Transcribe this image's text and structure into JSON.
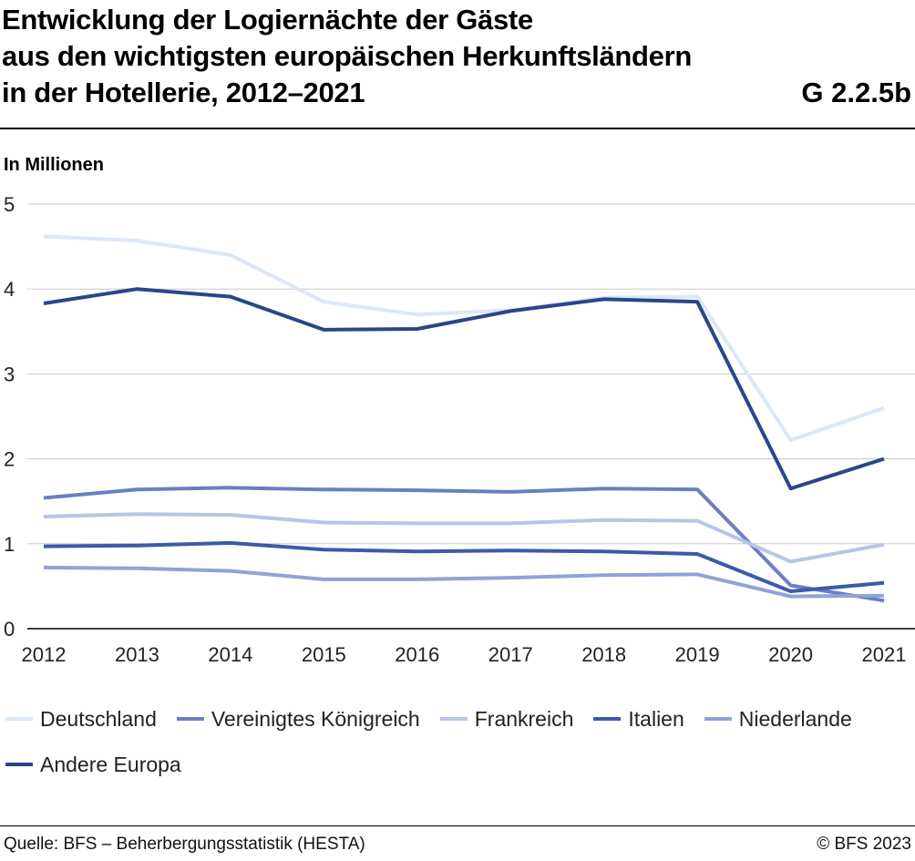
{
  "title_lines": [
    "Entwicklung der Logiernächte der Gäste",
    "aus den wichtigsten europäischen Herkunftsländern",
    "in der Hotellerie, 2012–2021"
  ],
  "figure_code": "G 2.2.5b",
  "unit_label": "In Millionen",
  "source": "Quelle: BFS – Beherbergungsstatistik (HESTA)",
  "copyright": "© BFS 2023",
  "chart_data": {
    "type": "line",
    "title": "Entwicklung der Logiernächte der Gäste aus den wichtigsten europäischen Herkunftsländern in der Hotellerie, 2012–2021",
    "ylabel": "In Millionen",
    "xlabel": "",
    "x": [
      "2012",
      "2013",
      "2014",
      "2015",
      "2016",
      "2017",
      "2018",
      "2019",
      "2020",
      "2021"
    ],
    "ylim": [
      0,
      5
    ],
    "yticks": [
      0,
      1,
      2,
      3,
      4,
      5
    ],
    "grid": true,
    "legend_position": "bottom",
    "series": [
      {
        "name": "Deutschland",
        "color": "#dce8f7",
        "values": [
          4.62,
          4.57,
          4.4,
          3.85,
          3.7,
          3.75,
          3.9,
          3.91,
          2.22,
          2.6
        ]
      },
      {
        "name": "Vereinigtes Königreich",
        "color": "#6b7fc0",
        "values": [
          1.54,
          1.64,
          1.66,
          1.64,
          1.63,
          1.61,
          1.65,
          1.64,
          0.51,
          0.33
        ]
      },
      {
        "name": "Frankreich",
        "color": "#b6c6e8",
        "values": [
          1.32,
          1.35,
          1.34,
          1.25,
          1.24,
          1.24,
          1.28,
          1.27,
          0.79,
          0.99
        ]
      },
      {
        "name": "Italien",
        "color": "#3d5aa8",
        "values": [
          0.97,
          0.98,
          1.01,
          0.93,
          0.91,
          0.92,
          0.91,
          0.88,
          0.44,
          0.54
        ]
      },
      {
        "name": "Niederlande",
        "color": "#91a3d6",
        "values": [
          0.72,
          0.71,
          0.68,
          0.58,
          0.58,
          0.6,
          0.63,
          0.64,
          0.38,
          0.39
        ]
      },
      {
        "name": "Andere Europa",
        "color": "#2b4688",
        "values": [
          3.83,
          4.0,
          3.91,
          3.52,
          3.53,
          3.74,
          3.88,
          3.85,
          1.65,
          2.0
        ]
      }
    ]
  }
}
